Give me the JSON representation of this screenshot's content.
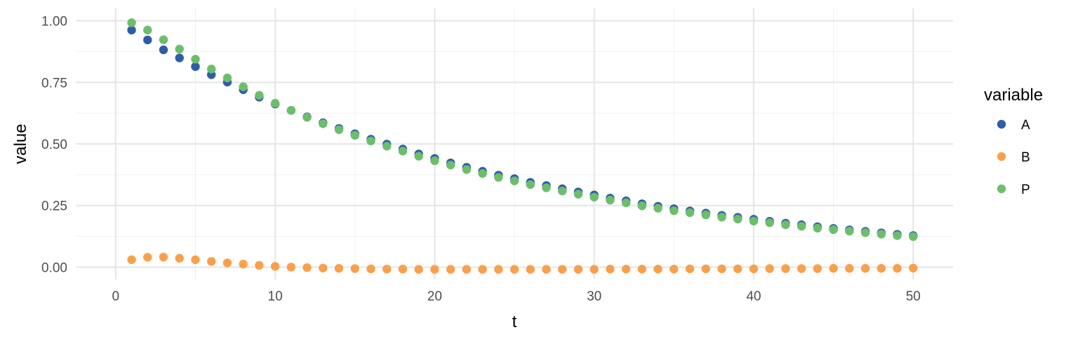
{
  "chart_data": {
    "type": "scatter",
    "title": "",
    "xlabel": "t",
    "ylabel": "value",
    "xlim": [
      0,
      50
    ],
    "ylim": [
      0,
      1
    ],
    "xticks": [
      0,
      10,
      20,
      30,
      40,
      50
    ],
    "xtick_labels": [
      "0",
      "10",
      "20",
      "30",
      "40",
      "50"
    ],
    "yticks": [
      0,
      0.25,
      0.5,
      0.75,
      1.0
    ],
    "ytick_labels": [
      "0.00",
      "0.25",
      "0.50",
      "0.75",
      "1.00"
    ],
    "grid": true,
    "legend": {
      "title": "variable",
      "position": "right"
    },
    "x": [
      1,
      2,
      3,
      4,
      5,
      6,
      7,
      8,
      9,
      10,
      11,
      12,
      13,
      14,
      15,
      16,
      17,
      18,
      19,
      20,
      21,
      22,
      23,
      24,
      25,
      26,
      27,
      28,
      29,
      30,
      31,
      32,
      33,
      34,
      35,
      36,
      37,
      38,
      39,
      40,
      41,
      42,
      43,
      44,
      45,
      46,
      47,
      48,
      49,
      50
    ],
    "series": [
      {
        "name": "A",
        "color": "#2E5DA8",
        "values": [
          0.962,
          0.922,
          0.882,
          0.849,
          0.814,
          0.781,
          0.751,
          0.72,
          0.69,
          0.662,
          0.636,
          0.61,
          0.586,
          0.563,
          0.541,
          0.519,
          0.499,
          0.479,
          0.459,
          0.441,
          0.423,
          0.405,
          0.389,
          0.373,
          0.359,
          0.344,
          0.331,
          0.318,
          0.305,
          0.293,
          0.28,
          0.269,
          0.257,
          0.247,
          0.237,
          0.228,
          0.219,
          0.21,
          0.202,
          0.194,
          0.186,
          0.178,
          0.172,
          0.164,
          0.157,
          0.151,
          0.145,
          0.139,
          0.133,
          0.128
        ]
      },
      {
        "name": "B",
        "color": "#F9A04D",
        "values": [
          0.03,
          0.04,
          0.041,
          0.036,
          0.03,
          0.023,
          0.017,
          0.012,
          0.007,
          0.003,
          0.0,
          -0.002,
          -0.004,
          -0.005,
          -0.006,
          -0.007,
          -0.008,
          -0.008,
          -0.009,
          -0.009,
          -0.009,
          -0.009,
          -0.009,
          -0.009,
          -0.009,
          -0.009,
          -0.009,
          -0.009,
          -0.009,
          -0.009,
          -0.008,
          -0.008,
          -0.008,
          -0.008,
          -0.008,
          -0.007,
          -0.007,
          -0.007,
          -0.007,
          -0.007,
          -0.006,
          -0.006,
          -0.006,
          -0.006,
          -0.005,
          -0.005,
          -0.005,
          -0.005,
          -0.005,
          -0.004
        ]
      },
      {
        "name": "P",
        "color": "#6DBE6A",
        "values": [
          0.992,
          0.962,
          0.923,
          0.885,
          0.844,
          0.804,
          0.768,
          0.732,
          0.697,
          0.665,
          0.636,
          0.608,
          0.582,
          0.558,
          0.535,
          0.512,
          0.491,
          0.471,
          0.45,
          0.432,
          0.414,
          0.396,
          0.38,
          0.364,
          0.35,
          0.335,
          0.322,
          0.309,
          0.296,
          0.284,
          0.272,
          0.261,
          0.249,
          0.239,
          0.229,
          0.221,
          0.212,
          0.203,
          0.195,
          0.187,
          0.18,
          0.172,
          0.166,
          0.158,
          0.152,
          0.146,
          0.14,
          0.134,
          0.128,
          0.124
        ]
      }
    ]
  }
}
